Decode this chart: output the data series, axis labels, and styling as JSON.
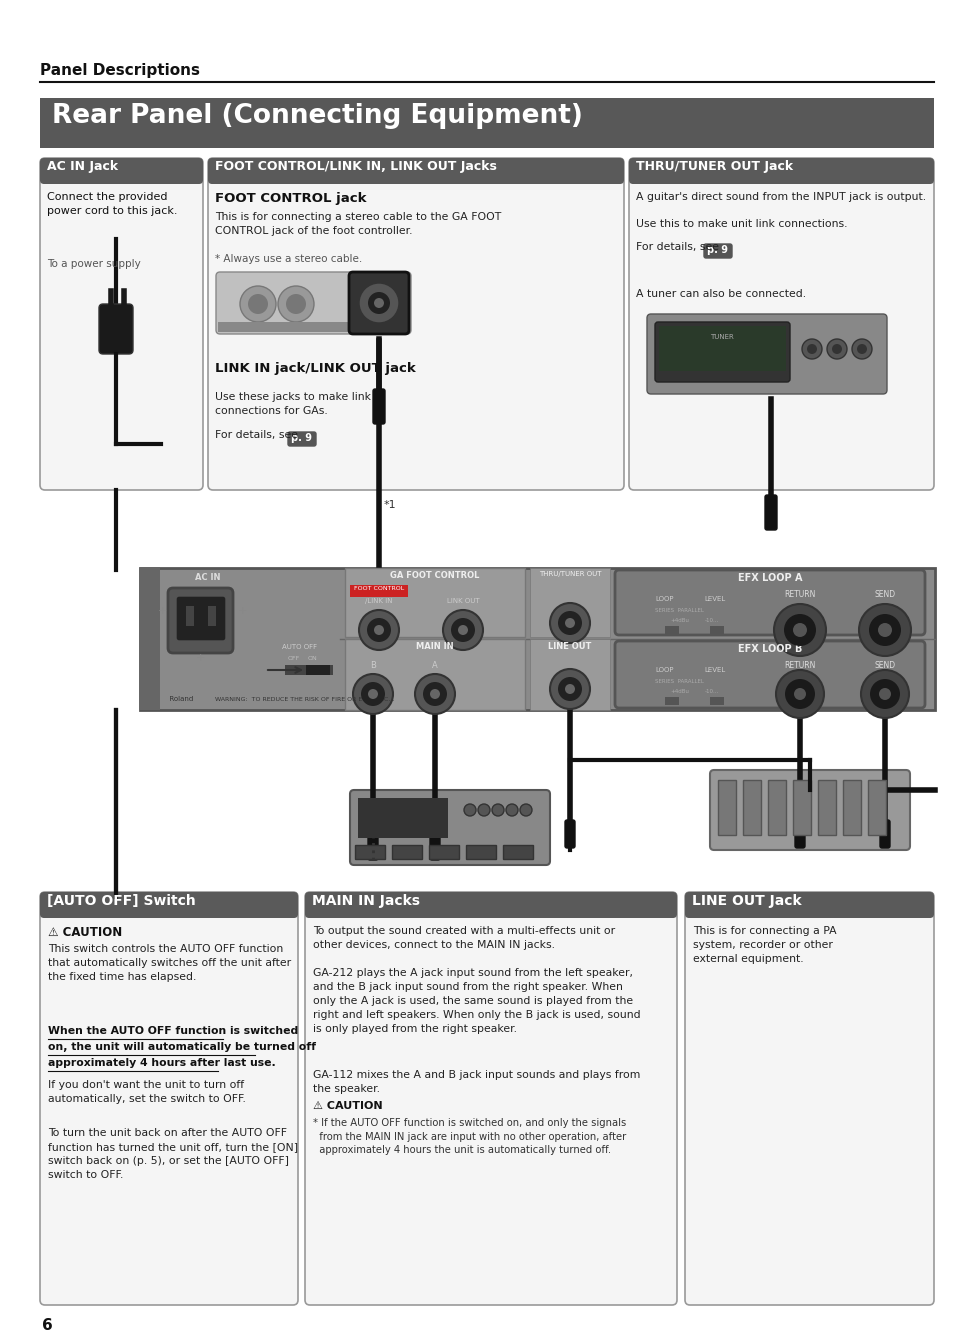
{
  "page_bg": "#ffffff",
  "page_number": "6",
  "section_title": "Panel Descriptions",
  "header_bg": "#585858",
  "header_text": "Rear Panel (Connecting Equipment)",
  "header_text_color": "#ffffff",
  "box_header_bg_grad_top": "#888888",
  "box_header_bg_grad_bot": "#444444",
  "box_header_text_color": "#ffffff",
  "box1_header": "AC IN Jack",
  "box1_body": "Connect the provided\npower cord to this jack.",
  "box1_sub": "To a power supply",
  "box2_header": "FOOT CONTROL/LINK IN, LINK OUT Jacks",
  "box2_sub1_title": "FOOT CONTROL jack",
  "box2_sub1_body": "This is for connecting a stereo cable to the GA FOOT\nCONTROL jack of the foot controller.",
  "box2_sub1_note": "* Always use a stereo cable.",
  "box2_sub2_title": "LINK IN jack/LINK OUT jack",
  "box2_sub2_body": "Use these jacks to make link\nconnections for GAs.",
  "box2_sub2_ref": "For details, see",
  "box2_sub2_ref_page": "p. 9",
  "box3_header": "THRU/TUNER OUT Jack",
  "box3_body1": "A guitar's direct sound from the INPUT jack is output.",
  "box3_body2": "Use this to make unit link connections.",
  "box3_ref": "For details, see",
  "box3_ref_page": "p. 9",
  "box3_body3": "A tuner can also be connected.",
  "bottom_box1_header": "[AUTO OFF] Switch",
  "bottom_box1_caution_title": "⚠ CAUTION",
  "bottom_box1_caution_body": "This switch controls the AUTO OFF function\nthat automatically switches off the unit after\nthe fixed time has elapsed.",
  "bottom_box1_underline_text": "When the AUTO OFF function is switched\non, the unit will automatically be turned off\napproximately 4 hours after last use.",
  "bottom_box1_body2": "If you don't want the unit to turn off\nautomatically, set the switch to OFF.",
  "bottom_box1_body3": "To turn the unit back on after the AUTO OFF\nfunction has turned the unit off, turn the [ON]\nswitch back on (p. 5), or set the [AUTO OFF]\nswitch to OFF.",
  "bottom_box2_header": "MAIN IN Jacks",
  "bottom_box2_body1": "To output the sound created with a multi-effects unit or\nother devices, connect to the MAIN IN jacks.",
  "bottom_box2_body2": "GA-212 plays the A jack input sound from the left speaker,\nand the B jack input sound from the right speaker. When\nonly the A jack is used, the same sound is played from the\nright and left speakers. When only the B jack is used, sound\nis only played from the right speaker.",
  "bottom_box2_body3": "GA-112 mixes the A and B jack input sounds and plays from\nthe speaker.",
  "bottom_box2_caution_title": "⚠ CAUTION",
  "bottom_box2_caution_note": "* If the AUTO OFF function is switched on, and only the signals\n  from the MAIN IN jack are input with no other operation, after\n  approximately 4 hours the unit is automatically turned off.",
  "bottom_box3_header": "LINE OUT Jack",
  "bottom_box3_body": "This is for connecting a PA\nsystem, recorder or other\nexternal equipment.",
  "panel_bg": "#909090",
  "star1_label": "*1"
}
